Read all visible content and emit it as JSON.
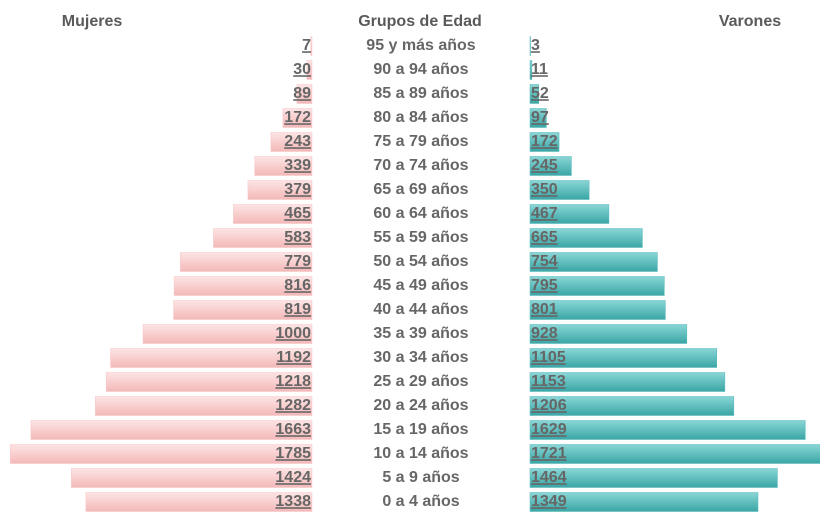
{
  "chart_data": {
    "type": "population-pyramid",
    "category_label": "Grupos de Edad",
    "categories": [
      "95 y más años",
      "90 a 94 años",
      "85 a 89 años",
      "80 a 84 años",
      "75 a 79 años",
      "70 a 74 años",
      "65 a 69 años",
      "60 a 64 años",
      "55 a 59 años",
      "50 a 54 años",
      "45 a 49 años",
      "40 a 44 años",
      "35 a 39 años",
      "30 a 34 años",
      "25 a 29 años",
      "20 a 24 años",
      "15 a 19 años",
      "10 a 14 años",
      "5 a 9 años",
      "0 a 4 años"
    ],
    "series": [
      {
        "name": "Mujeres",
        "color": "#f7c4c4",
        "side": "left",
        "values": [
          7,
          30,
          89,
          172,
          243,
          339,
          379,
          465,
          583,
          779,
          816,
          819,
          1000,
          1192,
          1218,
          1282,
          1663,
          1785,
          1424,
          1338
        ]
      },
      {
        "name": "Varones",
        "color": "#52b8b8",
        "side": "right",
        "values": [
          3,
          11,
          52,
          97,
          172,
          245,
          350,
          467,
          665,
          754,
          795,
          801,
          928,
          1105,
          1153,
          1206,
          1629,
          1721,
          1464,
          1349
        ]
      }
    ]
  }
}
